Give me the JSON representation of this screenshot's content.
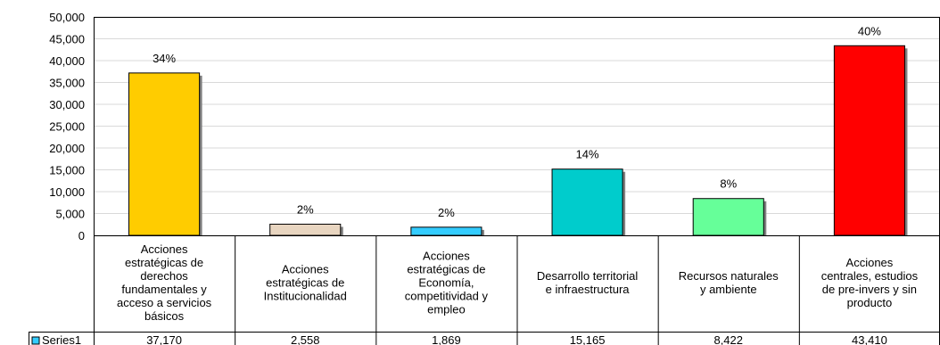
{
  "chart_data": {
    "type": "bar",
    "categories": [
      "Acciones estratégicas de derechos fundamentales y acceso a servicios básicos",
      "Acciones estratégicas de Institucionalidad",
      "Acciones estratégicas de Economía, competitividad y empleo",
      "Desarrollo territorial e infraestructura",
      "Recursos naturales y ambiente",
      "Acciones centrales, estudios de pre-invers y sin producto"
    ],
    "category_lines": [
      [
        "Acciones",
        "estratégicas de",
        "derechos",
        "fundamentales y",
        "acceso a servicios",
        "básicos"
      ],
      [
        "Acciones",
        "estratégicas de",
        "Institucionalidad"
      ],
      [
        "Acciones",
        "estratégicas de",
        "Economía,",
        "competitividad y",
        "empleo"
      ],
      [
        "Desarrollo territorial",
        "e infraestructura"
      ],
      [
        "Recursos naturales",
        "y ambiente"
      ],
      [
        "Acciones",
        "centrales, estudios",
        "de pre-invers y sin",
        "producto"
      ]
    ],
    "series": [
      {
        "name": "Series1",
        "values": [
          37170,
          2558,
          1869,
          15165,
          8422,
          43410
        ],
        "value_labels": [
          "37,170",
          "2,558",
          "1,869",
          "15,165",
          "8,422",
          "43,410"
        ]
      }
    ],
    "data_labels": [
      "34%",
      "2%",
      "2%",
      "14%",
      "8%",
      "40%"
    ],
    "bar_colors": [
      "#FFCC00",
      "#E8D5C0",
      "#33CCFF",
      "#00CCCC",
      "#66FF99",
      "#FF0000"
    ],
    "y_ticks": [
      "0",
      "5,000",
      "10,000",
      "15,000",
      "20,000",
      "25,000",
      "30,000",
      "35,000",
      "40,000",
      "45,000",
      "50,000"
    ],
    "ylim": [
      0,
      50000
    ],
    "grid": true,
    "legend_color": "#33CCFF",
    "title": "",
    "xlabel": "",
    "ylabel": ""
  }
}
